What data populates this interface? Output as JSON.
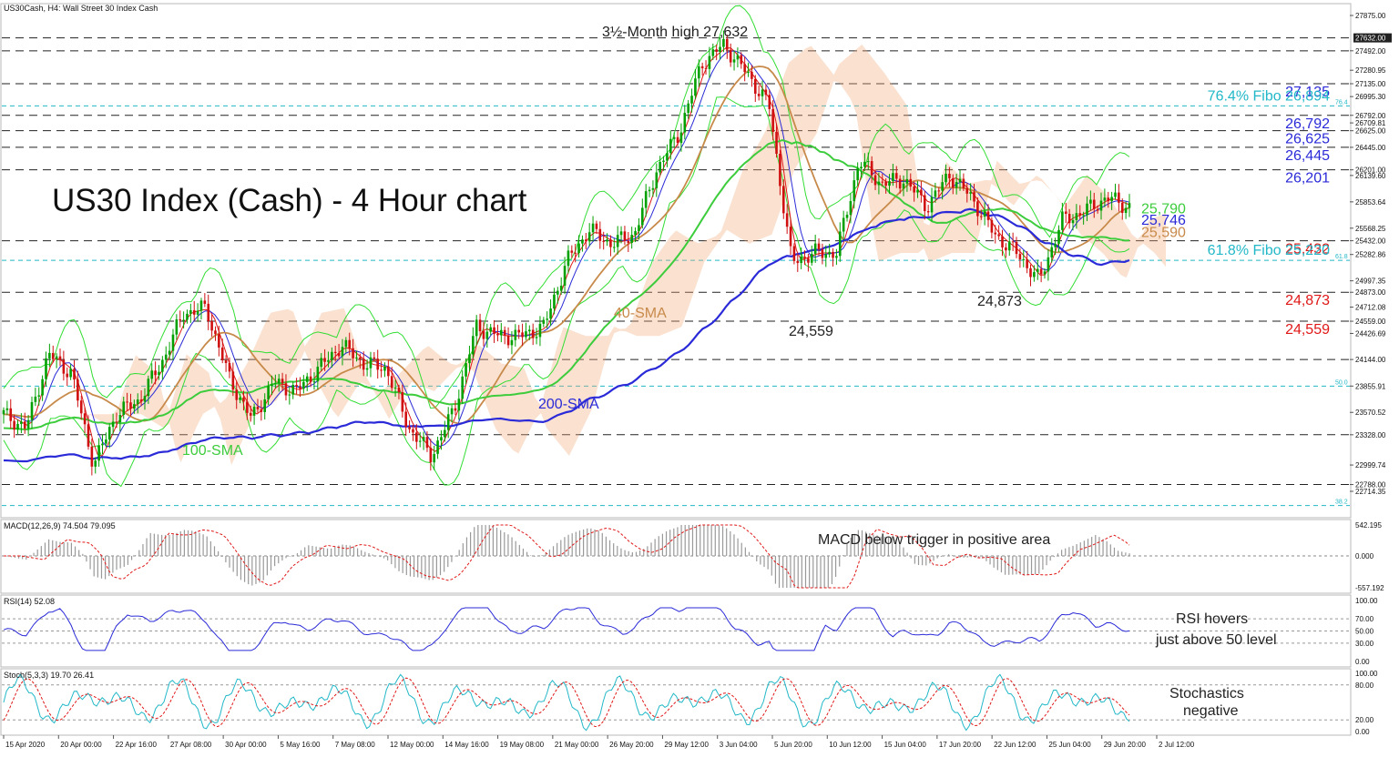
{
  "window": {
    "symbol_header": "US30Cash, H4:  Wall Street 30 Index Cash"
  },
  "chart_data": [
    {
      "type": "line",
      "panel": "main",
      "title": "US30 Index (Cash) - 4 Hour chart",
      "ylim": [
        22460,
        27875
      ],
      "axis_ticks": [
        "27875.00",
        "27492.00",
        "27280.95",
        "27135.00",
        "26995.30",
        "26792.00",
        "26709.81",
        "26625.00",
        "26445.00",
        "26201.00",
        "26139.60",
        "25853.64",
        "25568.25",
        "25432.00",
        "25282.86",
        "24997.35",
        "24873.00",
        "24712.08",
        "24559.00",
        "24426.69",
        "24144.00",
        "23855.91",
        "23570.52",
        "23328.00",
        "22999.74",
        "22788.00",
        "22714.35"
      ],
      "highlighted_ticks": [
        "27632.00",
        "27492.00",
        "27135.00",
        "26792.00",
        "26625.00",
        "26445.00",
        "26201.00",
        "25432.00",
        "24873.00",
        "24559.00",
        "24144.00",
        "23328.00",
        "22788.00"
      ],
      "x_labels": [
        "15 Apr 2020",
        "20 Apr 00:00",
        "22 Apr 16:00",
        "27 Apr 08:00",
        "30 Apr 00:00",
        "5 May 16:00",
        "7 May 08:00",
        "12 May 00:00",
        "14 May 16:00",
        "19 May 08:00",
        "21 May 00:00",
        "26 May 20:00",
        "29 May 12:00",
        "3 Jun 04:00",
        "5 Jun 20:00",
        "10 Jun 12:00",
        "15 Jun 04:00",
        "17 Jun 20:00",
        "22 Jun 12:00",
        "25 Jun 04:00",
        "29 Jun 20:00",
        "2 Jul 12:00"
      ],
      "horizontal_levels": [
        {
          "value": 27632,
          "style": "dashed"
        },
        {
          "value": 27492,
          "style": "dashed"
        },
        {
          "value": 27135,
          "style": "dashed"
        },
        {
          "value": 26894,
          "style": "fibo"
        },
        {
          "value": 26792,
          "style": "dashed"
        },
        {
          "value": 26625,
          "style": "dashed"
        },
        {
          "value": 26445,
          "style": "dashed"
        },
        {
          "value": 26201,
          "style": "dashed"
        },
        {
          "value": 25432,
          "style": "dashed"
        },
        {
          "value": 25220,
          "style": "fibo"
        },
        {
          "value": 24873,
          "style": "dashed"
        },
        {
          "value": 24559,
          "style": "dashed"
        },
        {
          "value": 24144,
          "style": "dashed"
        },
        {
          "value": 23855,
          "style": "fibo"
        },
        {
          "value": 23328,
          "style": "dashed"
        },
        {
          "value": 22788,
          "style": "dashed"
        },
        {
          "value": 22560,
          "style": "fibo"
        }
      ],
      "fibo_tags": [
        {
          "label": "76.4",
          "value": 26894
        },
        {
          "label": "61.8",
          "value": 25220
        },
        {
          "label": "50.0",
          "value": 23855
        },
        {
          "label": "38.2",
          "value": 22560
        }
      ],
      "level_labels": [
        {
          "text": "27,135",
          "value": 27135,
          "color": "#2a2ad8"
        },
        {
          "text": "76.4% Fibo 26,894",
          "value": 26894,
          "color": "#22b8c8"
        },
        {
          "text": "26,792",
          "value": 26792,
          "color": "#2a2ad8"
        },
        {
          "text": "26,625",
          "value": 26625,
          "color": "#2a2ad8"
        },
        {
          "text": "26,445",
          "value": 26445,
          "color": "#2a2ad8"
        },
        {
          "text": "26,201",
          "value": 26201,
          "color": "#2a2ad8"
        },
        {
          "text": "25,432",
          "value": 25432,
          "color": "#e01818"
        },
        {
          "text": "61.8% Fibo 25,220",
          "value": 25220,
          "color": "#22b8c8"
        },
        {
          "text": "24,873",
          "value": 24873,
          "color": "#e01818"
        },
        {
          "text": "24,559",
          "value": 24559,
          "color": "#e01818"
        }
      ],
      "ma_labels": [
        {
          "text": "25,790",
          "value": 25790,
          "color": "#3ccc3c"
        },
        {
          "text": "25,746",
          "value": 25746,
          "color": "#2a2ad8"
        },
        {
          "text": "25,590",
          "value": 25590,
          "color": "#c88a4a"
        }
      ],
      "annotations": [
        {
          "text": "3½-Month high 27,632",
          "color": "#222222"
        },
        {
          "text": "24,559",
          "color": "#222222"
        },
        {
          "text": "24,873",
          "color": "#222222"
        },
        {
          "text": "40-SMA",
          "color": "#c88a4a"
        },
        {
          "text": "100-SMA",
          "color": "#3ccc3c"
        },
        {
          "text": "200-SMA",
          "color": "#2a2ad8"
        }
      ],
      "price_path": [
        {
          "x": "15 Apr 2020",
          "y": 23550
        },
        {
          "x": "16 Apr",
          "y": 23400
        },
        {
          "x": "17 Apr",
          "y": 24200
        },
        {
          "x": "20 Apr 00:00",
          "y": 24000
        },
        {
          "x": "21 Apr",
          "y": 23000
        },
        {
          "x": "22 Apr 16:00",
          "y": 23550
        },
        {
          "x": "23 Apr",
          "y": 23700
        },
        {
          "x": "27 Apr 08:00",
          "y": 24100
        },
        {
          "x": "29 Apr",
          "y": 24650
        },
        {
          "x": "30 Apr 00:00",
          "y": 24700
        },
        {
          "x": "1 May",
          "y": 23950
        },
        {
          "x": "4 May",
          "y": 23500
        },
        {
          "x": "5 May 16:00",
          "y": 23900
        },
        {
          "x": "6 May",
          "y": 23800
        },
        {
          "x": "7 May 08:00",
          "y": 24050
        },
        {
          "x": "8 May",
          "y": 24300
        },
        {
          "x": "11 May",
          "y": 24100
        },
        {
          "x": "12 May 00:00",
          "y": 24050
        },
        {
          "x": "13 May",
          "y": 23400
        },
        {
          "x": "14 May 16:00",
          "y": 23100
        },
        {
          "x": "15 May",
          "y": 23600
        },
        {
          "x": "18 May",
          "y": 24500
        },
        {
          "x": "19 May 08:00",
          "y": 24400
        },
        {
          "x": "21 May 00:00",
          "y": 24400
        },
        {
          "x": "22 May",
          "y": 24500
        },
        {
          "x": "26 May 20:00",
          "y": 25200
        },
        {
          "x": "27 May",
          "y": 25550
        },
        {
          "x": "29 May 12:00",
          "y": 25400
        },
        {
          "x": "1 Jun",
          "y": 25500
        },
        {
          "x": "3 Jun 04:00",
          "y": 26200
        },
        {
          "x": "4 Jun",
          "y": 26600
        },
        {
          "x": "5 Jun 20:00",
          "y": 27350
        },
        {
          "x": "8 Jun",
          "y": 27560
        },
        {
          "x": "9 Jun",
          "y": 27250
        },
        {
          "x": "10 Jun 12:00",
          "y": 26900
        },
        {
          "x": "11 Jun",
          "y": 25200
        },
        {
          "x": "12 Jun",
          "y": 25300
        },
        {
          "x": "15 Jun 04:00",
          "y": 25300
        },
        {
          "x": "16 Jun",
          "y": 26300
        },
        {
          "x": "17 Jun 20:00",
          "y": 26050
        },
        {
          "x": "18 Jun",
          "y": 26100
        },
        {
          "x": "19 Jun",
          "y": 25800
        },
        {
          "x": "22 Jun 12:00",
          "y": 26150
        },
        {
          "x": "23 Jun",
          "y": 25900
        },
        {
          "x": "24 Jun",
          "y": 25500
        },
        {
          "x": "25 Jun 04:00",
          "y": 25300
        },
        {
          "x": "26 Jun",
          "y": 25000
        },
        {
          "x": "29 Jun 20:00",
          "y": 25650
        },
        {
          "x": "30 Jun",
          "y": 25750
        },
        {
          "x": "1 Jul",
          "y": 25900
        },
        {
          "x": "2 Jul 12:00",
          "y": 25800
        }
      ]
    },
    {
      "type": "bar",
      "panel": "macd",
      "title": "MACD(12,26,9) 74.504 79.095",
      "annotation": "MACD below trigger in positive area",
      "axis_ticks": [
        "542.195",
        "0.000",
        "-557.192"
      ]
    },
    {
      "type": "line",
      "panel": "rsi",
      "title": "RSI(14) 52.08",
      "annotation_lines": [
        "RSI hovers",
        "just above 50 level"
      ],
      "axis_ticks": [
        "100.00",
        "70.00",
        "50.00",
        "30.00",
        "0.00"
      ],
      "ylim": [
        0,
        100
      ]
    },
    {
      "type": "line",
      "panel": "stochastics",
      "title": "Stoch(5,3,3) 19.70 26.41",
      "annotation_lines": [
        "Stochastics",
        "negative"
      ],
      "axis_ticks": [
        "100.00",
        "80.00",
        "20.00",
        "0.00"
      ],
      "ylim": [
        0,
        100
      ]
    }
  ],
  "colors": {
    "bull_candle": "#00a000",
    "bear_candle": "#d01010",
    "sma40": "#c88a4a",
    "sma100": "#3ccc3c",
    "sma200": "#2a2ad8",
    "bollinger_upper": "#33dd33",
    "kijun": "#2a2ad8",
    "tenkan": "#e01818",
    "cloud_up": "#f0a878",
    "cloud_down": "#7aaae8",
    "fibo": "#22b8c8",
    "macd_hist": "#999999",
    "macd_signal": "#e01818",
    "rsi_line": "#2a2ad8",
    "stoch_main": "#22b8c8",
    "stoch_signal": "#e01818"
  }
}
